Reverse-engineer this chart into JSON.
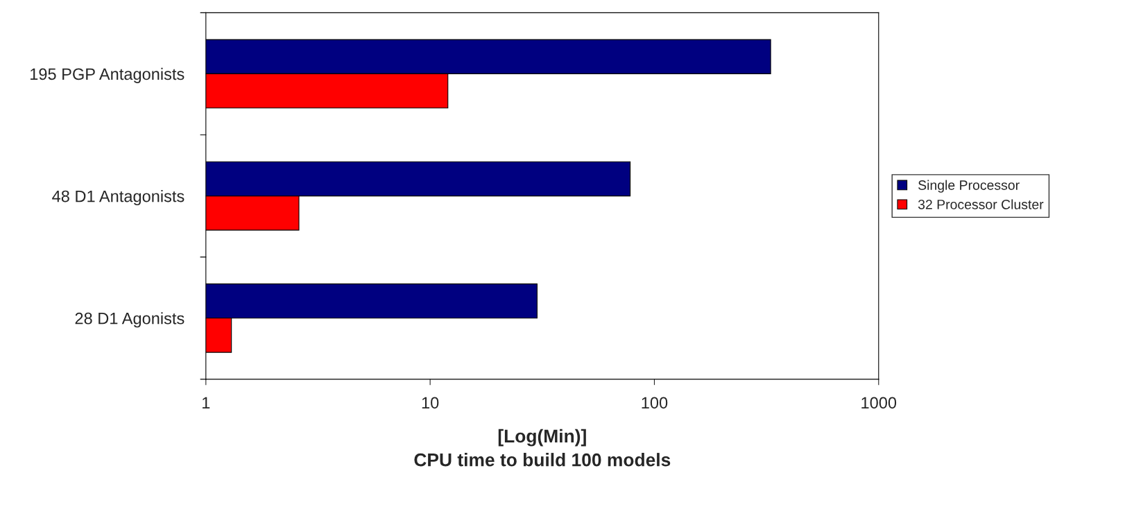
{
  "chart_data": {
    "type": "bar",
    "orientation": "horizontal",
    "log": "x",
    "categories": [
      "195 PGP Antagonists",
      "48 D1 Antagonists",
      "28 D1 Agonists"
    ],
    "series": [
      {
        "name": "Single Processor",
        "color": "#000080",
        "values": [
          330,
          78,
          30
        ]
      },
      {
        "name": "32 Processor Cluster",
        "color": "#ff0000",
        "values": [
          12,
          2.6,
          1.3
        ]
      }
    ],
    "xlabel": "[Log(Min)]\nCPU time to build 100 models",
    "xlim": [
      1,
      1000
    ],
    "xticks": [
      1,
      10,
      100,
      1000
    ],
    "grid": false,
    "legend": "right"
  }
}
